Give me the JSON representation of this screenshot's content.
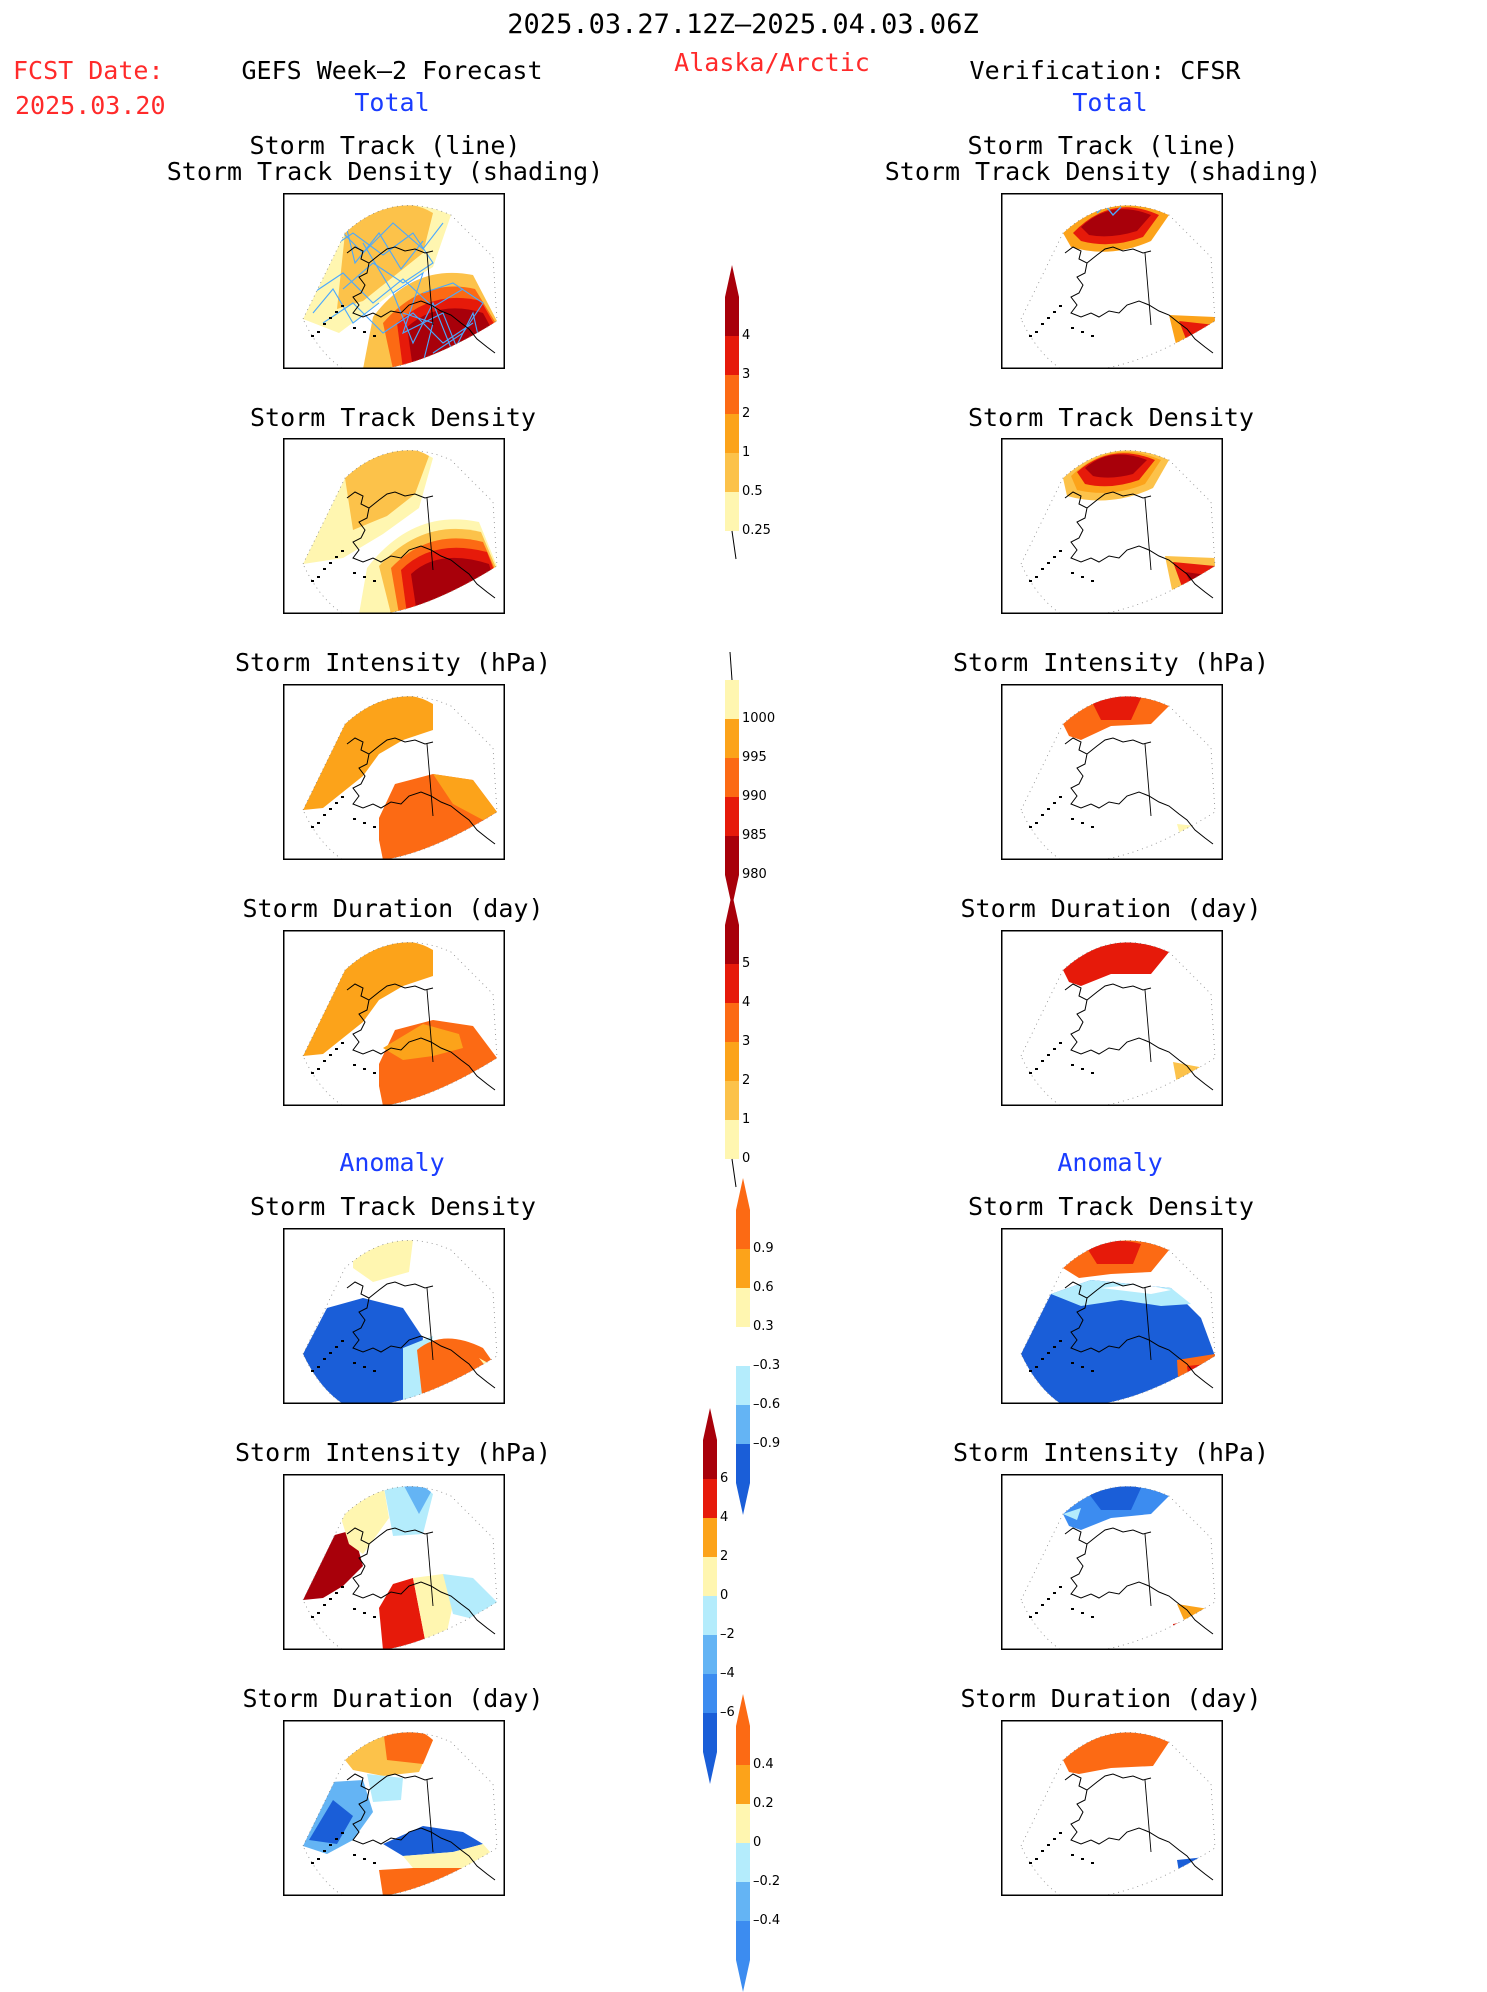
{
  "header": {
    "valid_period": "2025.03.27.12Z–2025.04.03.06Z",
    "fcst_label": "FCST Date:",
    "fcst_date": "2025.03.20",
    "left_title": "GEFS Week–2 Forecast",
    "region": "Alaska/Arctic",
    "right_title": "Verification: CFSR"
  },
  "sections": {
    "total": "Total",
    "anomaly": "Anomaly"
  },
  "panel_titles": {
    "track_line": "Storm Track (line)",
    "track_shading": "Storm Track Density (shading)",
    "density": "Storm Track Density",
    "intensity": "Storm Intensity (hPa)",
    "duration": "Storm Duration (day)"
  },
  "colors": {
    "pale_yellow": "#fff6b0",
    "light_orange": "#fcc24a",
    "orange": "#fca31a",
    "dark_orange": "#fc6a14",
    "red": "#e61a0a",
    "dark_red": "#a8000a",
    "light_blue": "#b4ecfc",
    "mid_blue": "#64b4f4",
    "blue": "#3c8cf0",
    "dark_blue": "#1a5ed8",
    "track_line": "#4aa8ff"
  },
  "colorbars": {
    "density": [
      "0.25",
      "0.5",
      "1",
      "2",
      "3",
      "4"
    ],
    "intensity": [
      "1000",
      "995",
      "990",
      "985",
      "980"
    ],
    "duration": [
      "0",
      "1",
      "2",
      "3",
      "4",
      "5"
    ],
    "density_anom": [
      "0.9",
      "0.6",
      "0.3",
      "–0.3",
      "–0.6",
      "–0.9"
    ],
    "intensity_anom": [
      "6",
      "4",
      "2",
      "0",
      "–2",
      "–4",
      "–6"
    ],
    "duration_anom": [
      "0.4",
      "0.2",
      "0",
      "–0.2",
      "–0.4"
    ]
  }
}
